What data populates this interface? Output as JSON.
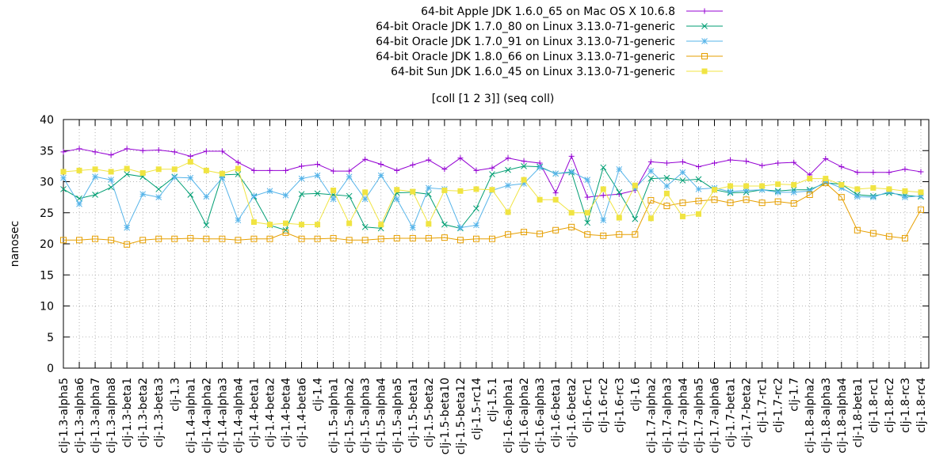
{
  "chart_data": {
    "type": "line",
    "title": "[coll [1 2 3]] (seq coll)",
    "ylabel": "nanosec",
    "xlabel": "",
    "ylim": [
      0,
      40
    ],
    "yticks": [
      0,
      5,
      10,
      15,
      20,
      25,
      30,
      35,
      40
    ],
    "grid": true,
    "legend_position": "top-right",
    "categories": [
      "clj-1.3-alpha5",
      "clj-1.3-alpha6",
      "clj-1.3-alpha7",
      "clj-1.3-alpha8",
      "clj-1.3-beta1",
      "clj-1.3-beta2",
      "clj-1.3-beta3",
      "clj-1.3",
      "clj-1.4-alpha1",
      "clj-1.4-alpha2",
      "clj-1.4-alpha3",
      "clj-1.4-alpha4",
      "clj-1.4-beta1",
      "clj-1.4-beta2",
      "clj-1.4-beta4",
      "clj-1.4-beta6",
      "clj-1.4",
      "clj-1.5-alpha1",
      "clj-1.5-alpha2",
      "clj-1.5-alpha3",
      "clj-1.5-alpha4",
      "clj-1.5-alpha5",
      "clj-1.5-beta1",
      "clj-1.5-beta2",
      "clj-1.5-beta10",
      "clj-1.5-beta12",
      "clj-1.5-rc14",
      "clj-1.5.1",
      "clj-1.6-alpha1",
      "clj-1.6-alpha2",
      "clj-1.6-alpha3",
      "clj-1.6-beta1",
      "clj-1.6-beta2",
      "clj-1.6-rc1",
      "clj-1.6-rc2",
      "clj-1.6-rc3",
      "clj-1.6",
      "clj-1.7-alpha2",
      "clj-1.7-alpha3",
      "clj-1.7-alpha4",
      "clj-1.7-alpha5",
      "clj-1.7-alpha6",
      "clj-1.7-beta1",
      "clj-1.7-beta2",
      "clj-1.7-rc1",
      "clj-1.7-rc2",
      "clj-1.7",
      "clj-1.8-alpha2",
      "clj-1.8-alpha3",
      "clj-1.8-alpha4",
      "clj-1.8-beta1",
      "clj-1.8-rc1",
      "clj-1.8-rc2",
      "clj-1.8-rc3",
      "clj-1.8-rc4"
    ],
    "x": [
      0,
      2,
      4,
      6,
      8,
      10,
      12,
      14,
      16,
      18,
      20,
      22,
      24,
      26,
      28,
      30,
      32,
      34,
      36,
      38,
      40,
      42,
      44,
      46,
      48,
      50,
      52,
      54,
      56,
      58,
      60,
      62,
      64,
      66,
      68,
      70,
      72,
      74,
      76,
      78,
      80,
      82,
      84,
      86,
      88,
      90,
      92,
      94,
      96,
      98,
      100,
      102,
      104,
      106,
      108
    ],
    "xlim": [
      0,
      109
    ],
    "series": [
      {
        "name": "64-bit Apple JDK 1.6.0_65 on Mac OS X 10.6.8",
        "color": "#9400d3",
        "marker": "plus",
        "x": [
          0,
          2,
          4,
          6,
          8,
          10,
          12,
          14,
          16,
          18,
          20,
          22,
          24,
          26,
          28,
          30,
          32,
          34,
          36,
          38,
          40,
          42,
          44,
          46,
          48,
          50,
          52,
          54,
          56,
          58,
          60,
          62,
          64,
          66,
          68,
          70,
          72,
          74,
          76,
          78,
          80,
          82,
          84,
          86,
          88,
          90,
          92,
          94,
          96,
          98,
          100,
          102,
          104,
          106,
          108
        ],
        "values": [
          34.8,
          35.3,
          34.8,
          34.3,
          35.3,
          35.0,
          35.1,
          34.8,
          34.1,
          34.9,
          34.9,
          33.1,
          31.8,
          31.8,
          31.8,
          32.5,
          32.8,
          31.7,
          31.7,
          33.6,
          32.8,
          31.8,
          32.7,
          33.5,
          32.0,
          33.8,
          31.8,
          32.2,
          33.8,
          33.3,
          33.0,
          28.2,
          34.1,
          27.5,
          27.8,
          28.0,
          28.6,
          33.2,
          33.0,
          33.2,
          32.4,
          33.0,
          33.5,
          33.3,
          32.6,
          33.0,
          33.1,
          31.1,
          33.7,
          32.4,
          31.5,
          31.5,
          31.5,
          32.0,
          31.6
        ]
      },
      {
        "name": "64-bit Oracle JDK 1.7.0_80 on Linux 3.13.0-71-generic",
        "color": "#009e73",
        "marker": "cross",
        "x": [
          0,
          2,
          4,
          6,
          8,
          10,
          12,
          14,
          16,
          18,
          20,
          22,
          24,
          26,
          28,
          30,
          32,
          34,
          36,
          38,
          40,
          42,
          44,
          46,
          48,
          50,
          52,
          54,
          56,
          58,
          60,
          62,
          64,
          66,
          68,
          70,
          72,
          74,
          76,
          78,
          80,
          82,
          84,
          86,
          88,
          90,
          92,
          94,
          96,
          98,
          100,
          102,
          104,
          106,
          108
        ],
        "values": [
          28.8,
          27.3,
          27.9,
          29.1,
          31.2,
          30.8,
          28.8,
          30.8,
          27.9,
          23.0,
          31.1,
          31.2,
          27.6,
          23.0,
          22.2,
          28.0,
          28.1,
          27.9,
          27.7,
          22.7,
          22.5,
          28.2,
          28.3,
          28.0,
          23.1,
          22.5,
          25.7,
          31.2,
          31.9,
          32.5,
          32.4,
          31.3,
          31.5,
          23.4,
          32.3,
          28.3,
          24.0,
          30.5,
          30.6,
          30.2,
          30.4,
          28.7,
          28.2,
          28.3,
          28.7,
          28.5,
          28.7,
          28.7,
          29.8,
          29.6,
          27.9,
          27.7,
          28.2,
          27.8,
          27.6
        ]
      },
      {
        "name": "64-bit Oracle JDK 1.7.0_91 on Linux 3.13.0-71-generic",
        "color": "#56b4e9",
        "marker": "star",
        "x": [
          0,
          2,
          4,
          6,
          8,
          10,
          12,
          14,
          16,
          18,
          20,
          22,
          24,
          26,
          28,
          30,
          32,
          34,
          36,
          38,
          40,
          42,
          44,
          46,
          48,
          50,
          52,
          54,
          56,
          58,
          60,
          62,
          64,
          66,
          68,
          70,
          72,
          74,
          76,
          78,
          80,
          82,
          84,
          86,
          88,
          90,
          92,
          94,
          96,
          98,
          100,
          102,
          104,
          106,
          108
        ],
        "values": [
          30.6,
          26.4,
          30.8,
          30.3,
          22.6,
          28.0,
          27.5,
          30.7,
          30.6,
          27.6,
          30.6,
          23.8,
          27.7,
          28.5,
          27.8,
          30.5,
          31.0,
          27.2,
          30.8,
          27.2,
          31.0,
          27.2,
          22.6,
          29.0,
          28.8,
          22.6,
          23.0,
          28.6,
          29.4,
          29.7,
          32.3,
          31.3,
          31.6,
          30.3,
          23.8,
          32.0,
          28.9,
          31.7,
          29.3,
          31.5,
          28.8,
          29.0,
          28.4,
          28.6,
          28.7,
          28.3,
          28.3,
          28.5,
          30.0,
          29.0,
          27.6,
          27.5,
          28.4,
          27.5,
          27.7
        ]
      },
      {
        "name": "64-bit Oracle JDK 1.8.0_66 on Linux 3.13.0-71-generic",
        "color": "#e69f00",
        "marker": "open-square",
        "x": [
          0,
          2,
          4,
          6,
          8,
          10,
          12,
          14,
          16,
          18,
          20,
          22,
          24,
          26,
          28,
          30,
          32,
          34,
          36,
          38,
          40,
          42,
          44,
          46,
          48,
          50,
          52,
          54,
          56,
          58,
          60,
          62,
          64,
          66,
          68,
          70,
          72,
          74,
          76,
          78,
          80,
          82,
          84,
          86,
          88,
          90,
          92,
          94,
          96,
          98,
          100,
          102,
          104,
          106,
          108
        ],
        "values": [
          20.6,
          20.6,
          20.8,
          20.6,
          19.9,
          20.6,
          20.8,
          20.8,
          20.9,
          20.8,
          20.8,
          20.6,
          20.8,
          20.8,
          21.8,
          20.8,
          20.8,
          20.9,
          20.6,
          20.6,
          20.8,
          20.9,
          20.9,
          20.9,
          21.0,
          20.6,
          20.8,
          20.8,
          21.5,
          21.9,
          21.6,
          22.2,
          22.7,
          21.5,
          21.3,
          21.5,
          21.5,
          27.0,
          26.1,
          26.6,
          26.9,
          27.1,
          26.6,
          27.1,
          26.6,
          26.8,
          26.5,
          27.9,
          29.8,
          27.5,
          22.2,
          21.7,
          21.2,
          20.9,
          25.5
        ]
      },
      {
        "name": "64-bit Sun JDK 1.6.0_45 on Linux 3.13.0-71-generic",
        "color": "#f0e442",
        "marker": "filled-square",
        "x": [
          0,
          2,
          4,
          6,
          8,
          10,
          12,
          14,
          16,
          18,
          20,
          22,
          24,
          26,
          28,
          30,
          32,
          34,
          36,
          38,
          40,
          42,
          44,
          46,
          48,
          50,
          52,
          54,
          56,
          58,
          60,
          62,
          64,
          66,
          68,
          70,
          72,
          74,
          76,
          78,
          80,
          82,
          84,
          86,
          88,
          90,
          92,
          94,
          96,
          98,
          100,
          102,
          104,
          106,
          108
        ],
        "values": [
          31.6,
          31.8,
          32.0,
          31.6,
          32.1,
          31.4,
          32.0,
          32.0,
          33.2,
          31.8,
          31.3,
          32.1,
          23.5,
          23.1,
          23.3,
          23.1,
          23.1,
          28.6,
          23.3,
          28.3,
          23.1,
          28.7,
          28.4,
          23.2,
          28.6,
          28.5,
          28.8,
          28.7,
          25.1,
          30.3,
          27.1,
          27.1,
          25.0,
          25.0,
          28.8,
          24.2,
          29.4,
          24.1,
          28.1,
          24.4,
          24.8,
          28.7,
          29.3,
          29.3,
          29.3,
          29.6,
          29.5,
          30.5,
          30.5,
          29.5,
          28.8,
          29.0,
          28.8,
          28.5,
          28.3
        ]
      }
    ]
  }
}
